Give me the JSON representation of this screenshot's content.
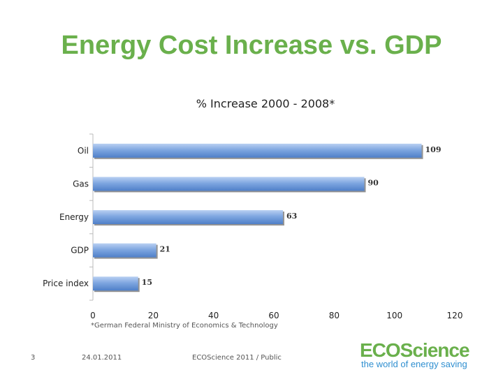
{
  "slide": {
    "title": "Energy Cost Increase vs. GDP",
    "footnote": "*German Federal Ministry of Economics & Technology",
    "page_number": "3",
    "date": "24.01.2011",
    "footer_text": "ECOScience 2011 / Public"
  },
  "logo": {
    "brand": "ECOScience",
    "tagline": "the world of energy saving"
  },
  "chart_data": {
    "type": "bar",
    "orientation": "horizontal",
    "title": "% Increase 2000 - 2008*",
    "categories": [
      "Oil",
      "Gas",
      "Energy",
      "GDP",
      "Price index"
    ],
    "values": [
      109,
      90,
      63,
      21,
      15
    ],
    "xlim": [
      0,
      120
    ],
    "xticks": [
      0,
      20,
      40,
      60,
      80,
      100,
      120
    ],
    "grid": false,
    "legend": "none",
    "bar_color": "#7ea6e0"
  }
}
